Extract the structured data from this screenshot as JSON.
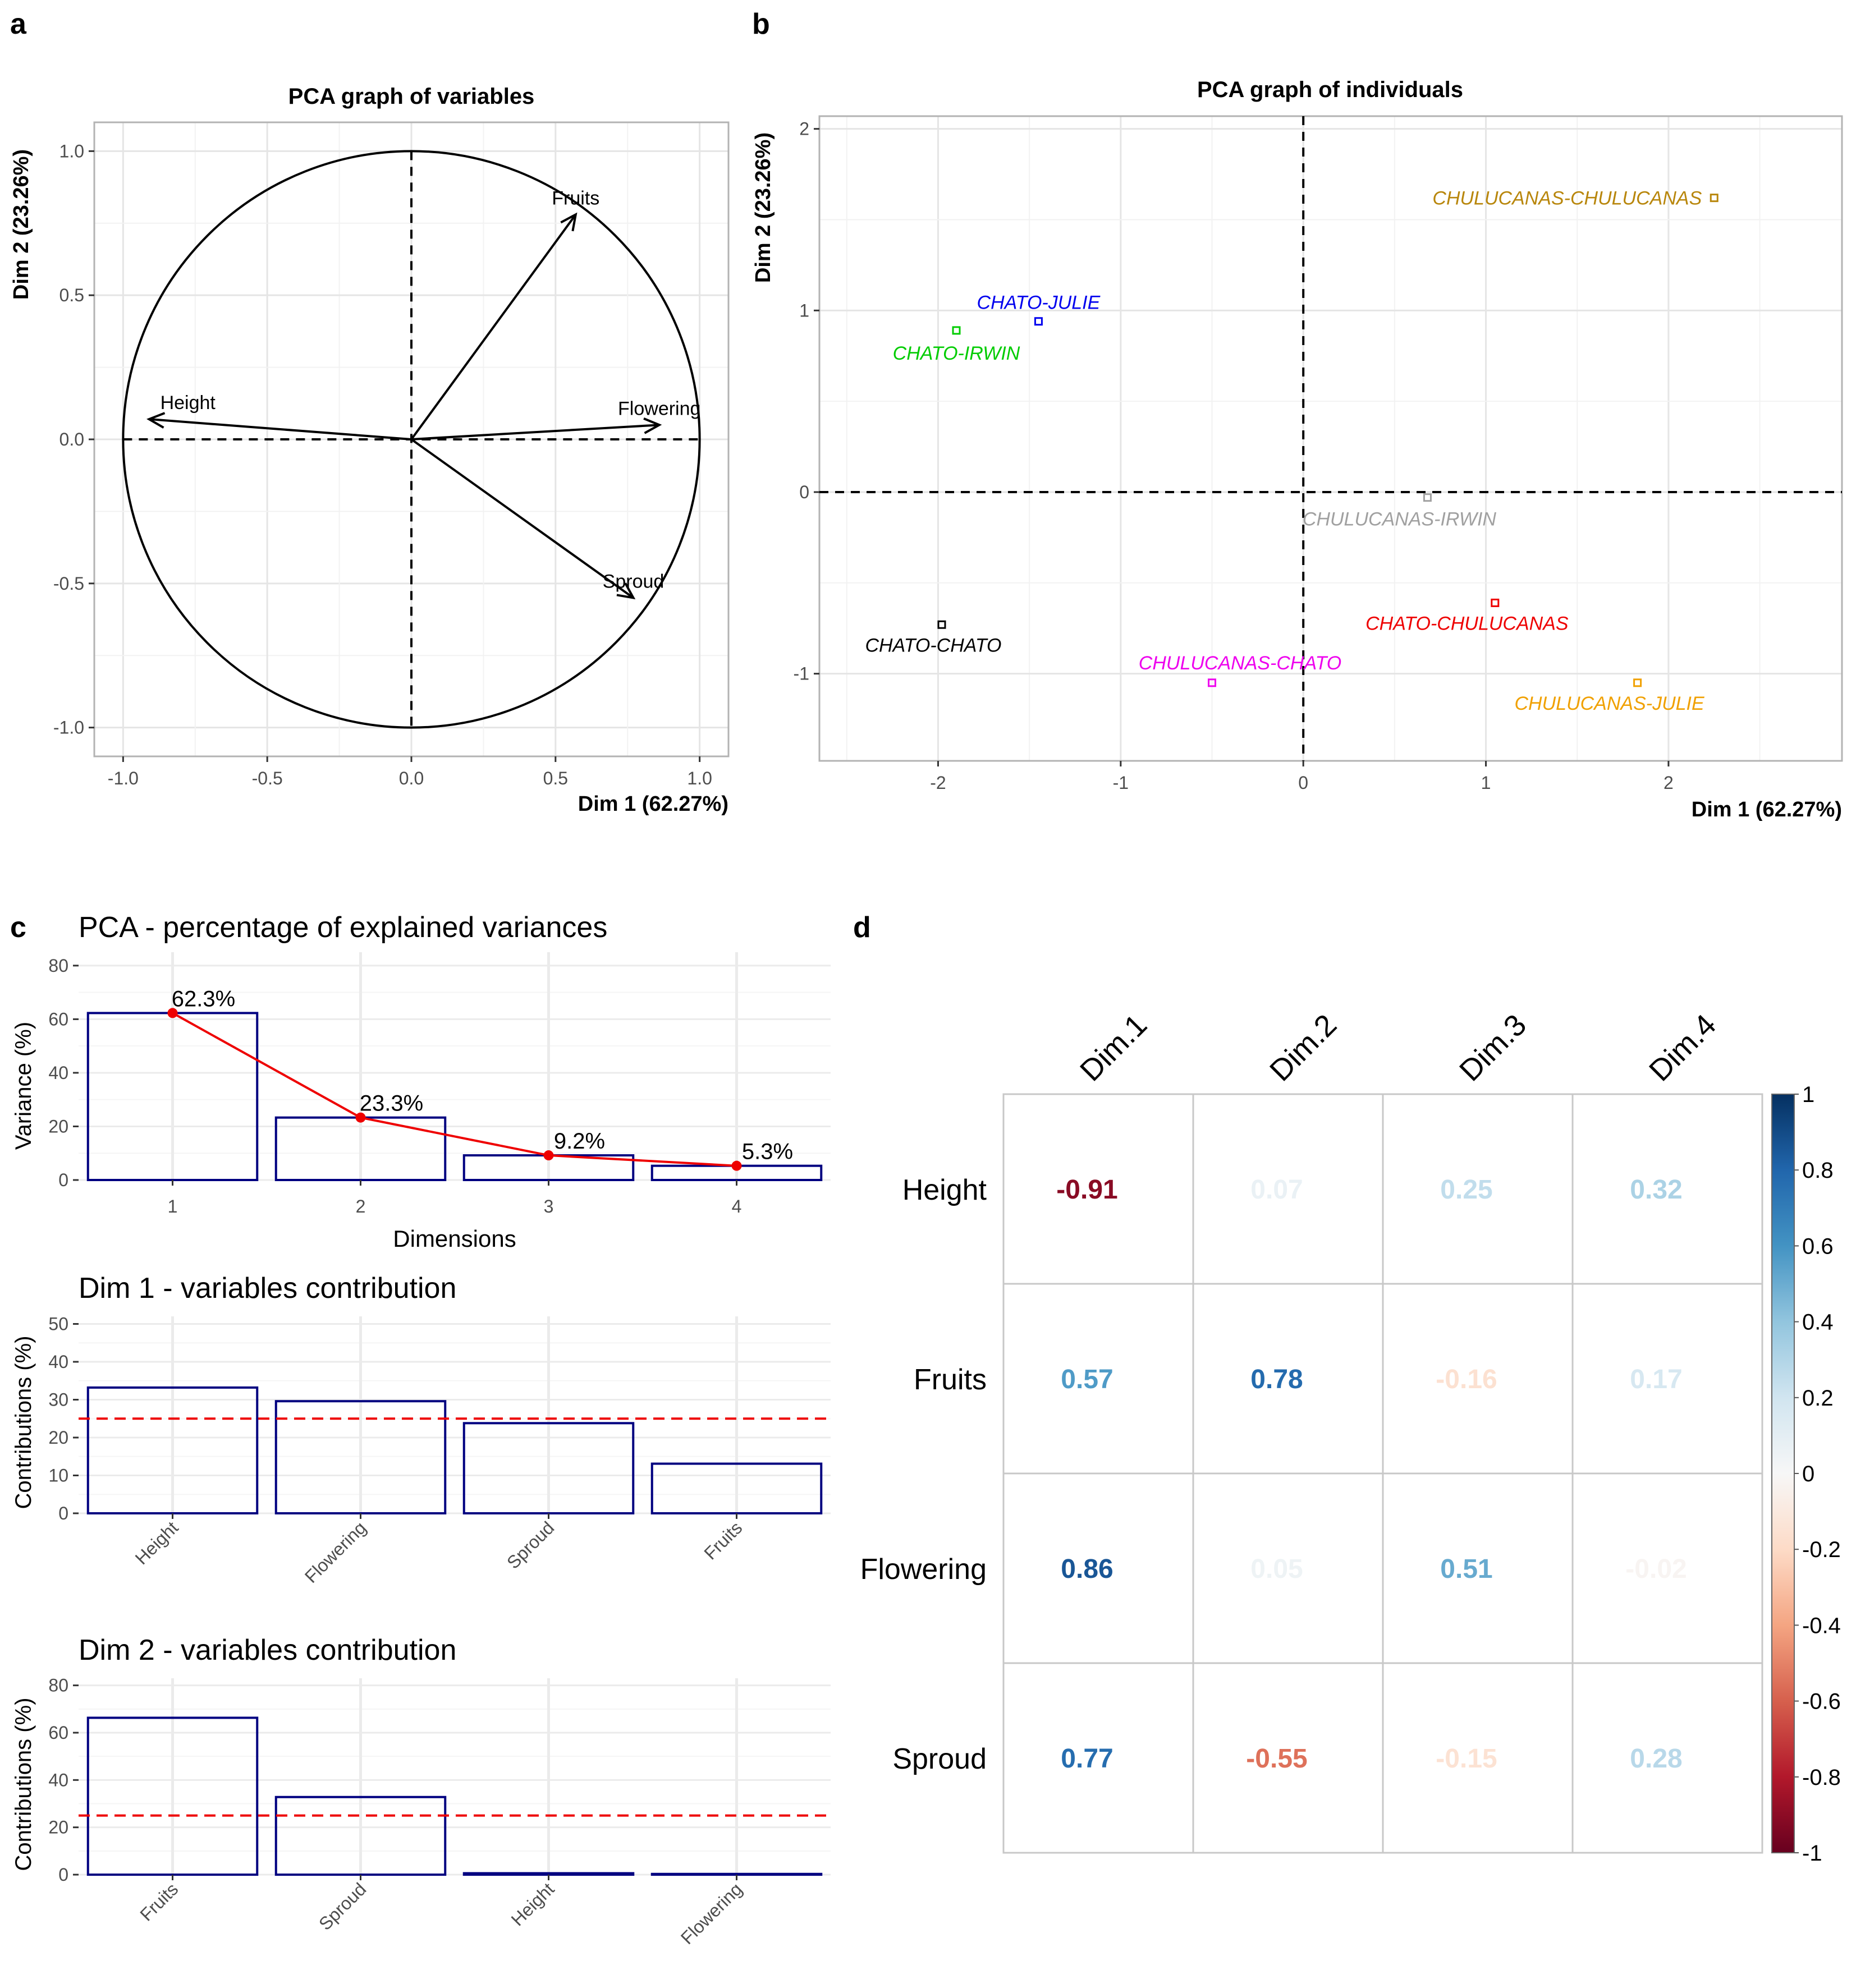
{
  "panel_letters": [
    "a",
    "b",
    "c",
    "d"
  ],
  "chart_data": [
    {
      "type": "scatter",
      "variant": "pca-variables",
      "title": "PCA graph of variables",
      "xlabel": "Dim 1 (62.27%)",
      "ylabel": "Dim 2 (23.26%)",
      "xlim": [
        -1.1,
        1.1
      ],
      "ylim": [
        -1.1,
        1.1
      ],
      "xticks": [
        -1.0,
        -0.5,
        0.0,
        0.5,
        1.0
      ],
      "xticklabels": [
        "-1.0",
        "-0.5",
        "0.0",
        "0.5",
        "1.0"
      ],
      "yticks": [
        -1.0,
        -0.5,
        0.0,
        0.5,
        1.0
      ],
      "yticklabels": [
        "-1.0",
        "-0.5",
        "0.0",
        "0.5",
        "1.0"
      ],
      "grid": true,
      "circle_radius": 1,
      "vectors": [
        {
          "name": "Fruits",
          "x": 0.57,
          "y": 0.78
        },
        {
          "name": "Height",
          "x": -0.91,
          "y": 0.07
        },
        {
          "name": "Flowering",
          "x": 0.86,
          "y": 0.05
        },
        {
          "name": "Sproud",
          "x": 0.77,
          "y": -0.55
        }
      ]
    },
    {
      "type": "scatter",
      "variant": "pca-individuals",
      "title": "PCA graph of individuals",
      "xlabel": "Dim 1 (62.27%)",
      "ylabel": "Dim 2 (23.26%)",
      "xlim": [
        -2.65,
        2.95
      ],
      "ylim": [
        -1.48,
        2.07
      ],
      "xticks": [
        -2,
        -1,
        0,
        1,
        2
      ],
      "xticklabels": [
        "-2",
        "-1",
        "0",
        "1",
        "2"
      ],
      "yticks": [
        -1,
        0,
        1,
        2
      ],
      "yticklabels": [
        "-1",
        "0",
        "1",
        "2"
      ],
      "grid": true,
      "points": [
        {
          "name": "CHULUCANAS-CHULUCANAS",
          "x": 2.25,
          "y": 1.62,
          "color": "#b8860b",
          "label_anchor": "end"
        },
        {
          "name": "CHATO-JULIE",
          "x": -1.45,
          "y": 0.94,
          "color": "#0000ee",
          "label_anchor": "middle"
        },
        {
          "name": "CHATO-IRWIN",
          "x": -1.9,
          "y": 0.89,
          "color": "#00cc00",
          "label_anchor": "middle"
        },
        {
          "name": "CHULUCANAS-IRWIN",
          "x": 0.68,
          "y": -0.03,
          "color": "#a0a0a0",
          "label_anchor": "middle"
        },
        {
          "name": "CHATO-CHULUCANAS",
          "x": 1.05,
          "y": -0.61,
          "color": "#ee0000",
          "label_anchor": "middle"
        },
        {
          "name": "CHATO-CHATO",
          "x": -1.98,
          "y": -0.73,
          "color": "#000000",
          "label_anchor": "middle"
        },
        {
          "name": "CHULUCANAS-CHATO",
          "x": -0.5,
          "y": -1.05,
          "color": "#ee00ee",
          "label_anchor": "middle"
        },
        {
          "name": "CHULUCANAS-JULIE",
          "x": 1.83,
          "y": -1.05,
          "color": "#f0a000",
          "label_anchor": "middle"
        }
      ]
    },
    {
      "type": "bar",
      "variant": "scree",
      "title": "PCA - percentage of explained variances",
      "xlabel": "Dimensions",
      "ylabel": "Variance (%)",
      "categories": [
        "1",
        "2",
        "3",
        "4"
      ],
      "values": [
        62.3,
        23.3,
        9.2,
        5.3
      ],
      "data_labels": [
        "62.3%",
        "23.3%",
        "9.2%",
        "5.3%"
      ],
      "ylim": [
        0,
        85
      ],
      "yticks": [
        0,
        20,
        40,
        60,
        80
      ],
      "yticklabels": [
        "0",
        "20",
        "40",
        "60",
        "80"
      ],
      "line_color": "#ee0000",
      "bar_color": "#000080"
    },
    {
      "type": "bar",
      "variant": "contribution",
      "title": "Dim 1 - variables contribution",
      "xlabel": "",
      "ylabel": "Contributions (%)",
      "categories": [
        "Height",
        "Flowering",
        "Sproud",
        "Fruits"
      ],
      "values": [
        33.2,
        29.6,
        23.8,
        13.1
      ],
      "reference_line": 25,
      "ylim": [
        0,
        52
      ],
      "yticks": [
        0,
        10,
        20,
        30,
        40,
        50
      ],
      "yticklabels": [
        "0",
        "10",
        "20",
        "30",
        "40",
        "50"
      ]
    },
    {
      "type": "bar",
      "variant": "contribution",
      "title": "Dim 2 - variables contribution",
      "xlabel": "",
      "ylabel": "Contributions (%)",
      "categories": [
        "Fruits",
        "Sproud",
        "Height",
        "Flowering"
      ],
      "values": [
        66.3,
        32.8,
        0.6,
        0.3
      ],
      "reference_line": 25,
      "ylim": [
        0,
        83
      ],
      "yticks": [
        0,
        20,
        40,
        60,
        80
      ],
      "yticklabels": [
        "0",
        "20",
        "40",
        "60",
        "80"
      ]
    },
    {
      "type": "heatmap",
      "variant": "correlation",
      "columns": [
        "Dim.1",
        "Dim.2",
        "Dim.3",
        "Dim.4"
      ],
      "rows": [
        "Height",
        "Fruits",
        "Flowering",
        "Sproud"
      ],
      "values": [
        [
          -0.91,
          0.07,
          0.25,
          0.32
        ],
        [
          0.57,
          0.78,
          -0.16,
          0.17
        ],
        [
          0.86,
          0.05,
          0.51,
          -0.02
        ],
        [
          0.77,
          -0.55,
          -0.15,
          0.28
        ]
      ],
      "value_labels": [
        [
          "-0.91",
          "0.07",
          "0.25",
          "0.32"
        ],
        [
          "0.57",
          "0.78",
          "-0.16",
          "0.17"
        ],
        [
          "0.86",
          "0.05",
          "0.51",
          "-0.02"
        ],
        [
          "0.77",
          "-0.55",
          "-0.15",
          "0.28"
        ]
      ],
      "colorbar_ticks": [
        1,
        0.8,
        0.6,
        0.4,
        0.2,
        0,
        -0.2,
        -0.4,
        -0.6,
        -0.8,
        -1
      ],
      "colorbar_ticklabels": [
        "1",
        "0.8",
        "0.6",
        "0.4",
        "0.2",
        "0",
        "-0.2",
        "-0.4",
        "-0.6",
        "-0.8",
        "-1"
      ]
    }
  ]
}
